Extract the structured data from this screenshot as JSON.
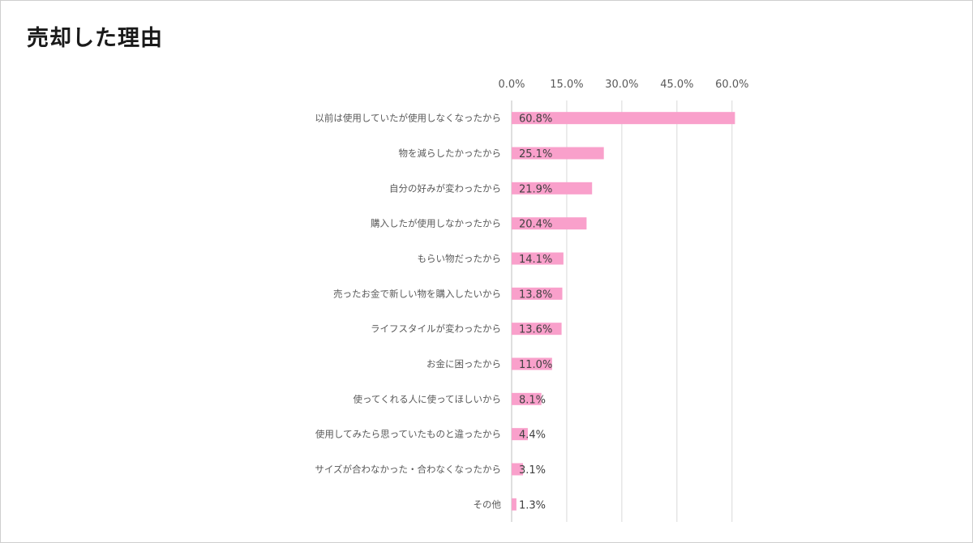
{
  "page": {
    "title": "売却した理由"
  },
  "colors": {
    "bar": "#f9a0cb",
    "grid": "#d9d9d9",
    "axis": "#bfbfbf"
  },
  "chart_data": {
    "type": "bar",
    "orientation": "horizontal",
    "categories": [
      "以前は使用していたが使用しなくなったから",
      "物を減らしたかったから",
      "自分の好みが変わったから",
      "購入したが使用しなかったから",
      "もらい物だったから",
      "売ったお金で新しい物を購入したいから",
      "ライフスタイルが変わったから",
      "お金に困ったから",
      "使ってくれる人に使ってほしいから",
      "使用してみたら思っていたものと違ったから",
      "サイズが合わなかった・合わなくなったから",
      "その他"
    ],
    "values": [
      60.8,
      25.1,
      21.9,
      20.4,
      14.1,
      13.8,
      13.6,
      11.0,
      8.1,
      4.4,
      3.1,
      1.3
    ],
    "value_labels": [
      "60.8%",
      "25.1%",
      "21.9%",
      "20.4%",
      "14.1%",
      "13.8%",
      "13.6%",
      "11.0%",
      "8.1%",
      "4.4%",
      "3.1%",
      "1.3%"
    ],
    "xticks": [
      0,
      15,
      30,
      45,
      60
    ],
    "xtick_labels": [
      "0.0%",
      "15.0%",
      "30.0%",
      "45.0%",
      "60.0%"
    ],
    "xlim": [
      0,
      65
    ],
    "axis_position": "top",
    "grid": true,
    "legend": "none"
  }
}
